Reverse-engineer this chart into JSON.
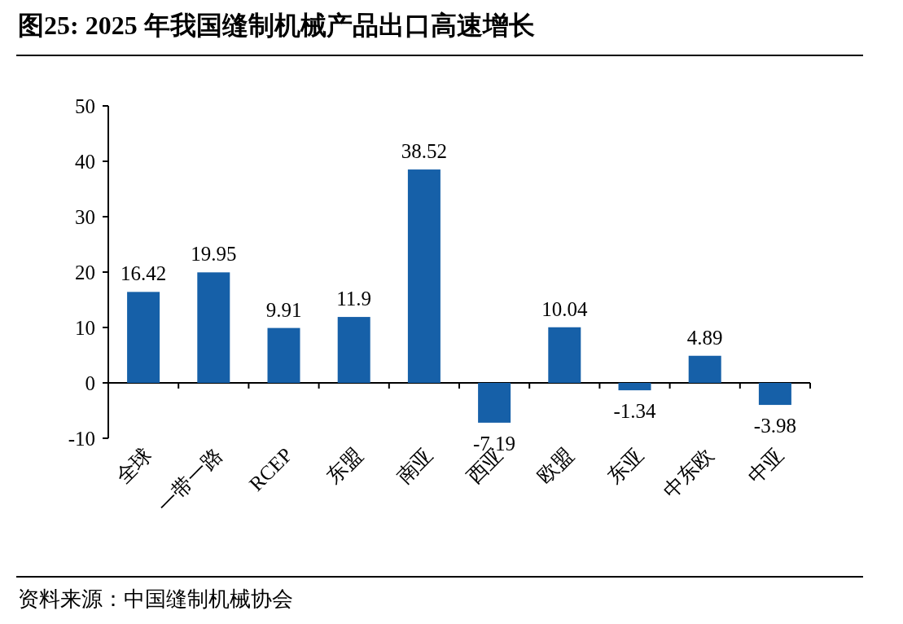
{
  "chart_data": {
    "type": "bar",
    "title": "图25:  2025 年我国缝制机械产品出口高速增长",
    "categories": [
      "全球",
      "一带一路",
      "RCEP",
      "东盟",
      "南亚",
      "西亚",
      "欧盟",
      "东亚",
      "中东欧",
      "中亚"
    ],
    "values": [
      16.42,
      19.95,
      9.91,
      11.9,
      38.52,
      -7.19,
      10.04,
      -1.34,
      4.89,
      -3.98
    ],
    "color": "#1660a8",
    "ylim": [
      -10,
      50
    ],
    "yticks": [
      -10,
      0,
      10,
      20,
      30,
      40,
      50
    ],
    "data_labels": true,
    "annotations": [
      "资料来源：中国缝制机械协会"
    ]
  }
}
